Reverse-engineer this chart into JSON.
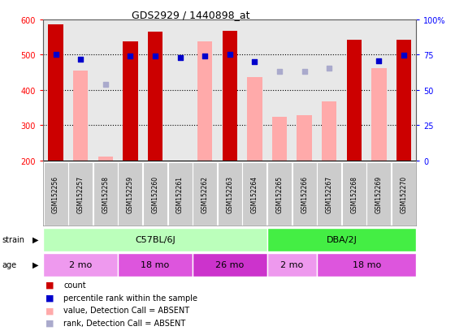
{
  "title": "GDS2929 / 1440898_at",
  "samples": [
    "GSM152256",
    "GSM152257",
    "GSM152258",
    "GSM152259",
    "GSM152260",
    "GSM152261",
    "GSM152262",
    "GSM152263",
    "GSM152264",
    "GSM152265",
    "GSM152266",
    "GSM152267",
    "GSM152268",
    "GSM152269",
    "GSM152270"
  ],
  "counts": [
    585,
    null,
    null,
    537,
    565,
    null,
    null,
    568,
    null,
    null,
    null,
    null,
    543,
    null,
    542
  ],
  "counts_absent": [
    null,
    454,
    210,
    null,
    null,
    null,
    537,
    null,
    437,
    323,
    329,
    368,
    null,
    462,
    null
  ],
  "pct_ranks": [
    501,
    488,
    null,
    495,
    495,
    491,
    496,
    501,
    479,
    null,
    null,
    null,
    null,
    482,
    498
  ],
  "pct_ranks_absent": [
    null,
    null,
    416,
    null,
    null,
    null,
    null,
    null,
    null,
    452,
    453,
    462,
    null,
    null,
    null
  ],
  "ylim": [
    200,
    600
  ],
  "yticks": [
    200,
    300,
    400,
    500,
    600
  ],
  "y2ticks": [
    0,
    25,
    50,
    75,
    100
  ],
  "count_color": "#cc0000",
  "count_absent_color": "#ffaaaa",
  "rank_color": "#0000cc",
  "rank_absent_color": "#aaaacc",
  "strain_groups": [
    {
      "label": "C57BL/6J",
      "start": 0,
      "end": 8,
      "color": "#bbffbb"
    },
    {
      "label": "DBA/2J",
      "start": 9,
      "end": 14,
      "color": "#44ee44"
    }
  ],
  "age_groups": [
    {
      "label": "2 mo",
      "start": 0,
      "end": 2,
      "color": "#ee99ee"
    },
    {
      "label": "18 mo",
      "start": 3,
      "end": 5,
      "color": "#dd55dd"
    },
    {
      "label": "26 mo",
      "start": 6,
      "end": 8,
      "color": "#cc33cc"
    },
    {
      "label": "2 mo",
      "start": 9,
      "end": 10,
      "color": "#ee99ee"
    },
    {
      "label": "18 mo",
      "start": 11,
      "end": 14,
      "color": "#dd55dd"
    }
  ],
  "grid_lines": [
    300,
    400,
    500
  ],
  "bg_color": "#e8e8e8",
  "legend_items": [
    {
      "color": "#cc0000",
      "label": "count"
    },
    {
      "color": "#0000cc",
      "label": "percentile rank within the sample"
    },
    {
      "color": "#ffaaaa",
      "label": "value, Detection Call = ABSENT"
    },
    {
      "color": "#aaaacc",
      "label": "rank, Detection Call = ABSENT"
    }
  ]
}
